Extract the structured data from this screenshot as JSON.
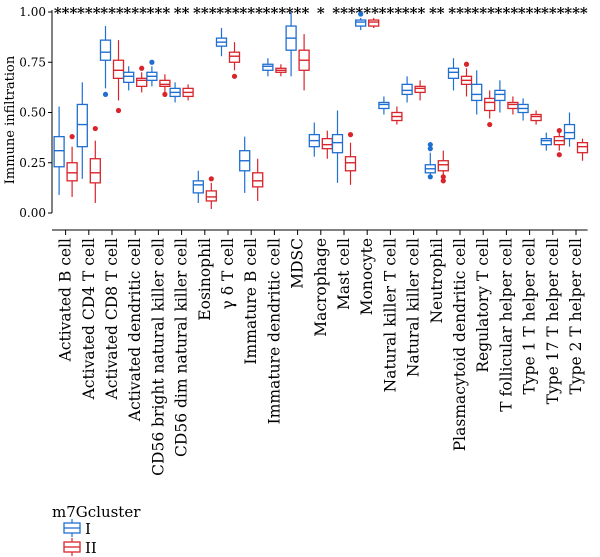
{
  "chart_data": {
    "type": "box",
    "ylabel": "Immune infiltration",
    "ylim": [
      0,
      1
    ],
    "yticks": [
      "0.00",
      "0.25",
      "0.50",
      "0.75",
      "1.00"
    ],
    "legend": {
      "title": "m7Gcluster",
      "placement": "bottom-left"
    },
    "series": [
      {
        "name": "I",
        "color": "#1f6fd1"
      },
      {
        "name": "II",
        "color": "#d9242b"
      }
    ],
    "categories": [
      "Activated B cell",
      "Activated CD4 T cell",
      "Activated CD8 T cell",
      "Activated dendritic cell",
      "CD56 bright natural killer cell",
      "CD56 dim natural killer cell",
      "Eosinophil",
      "γ δ T cell",
      "Immature B cell",
      "Immature dendritic cell",
      "MDSC",
      "Macrophage",
      "Mast cell",
      "Monocyte",
      "Natural killer T cell",
      "Natural killer cell",
      "Neutrophil",
      "Plasmacytoid dendritic cell",
      "Regulatory T cell",
      "T follicular helper cell",
      "Type 1 T helper cell",
      "Type 17 T helper cell",
      "Type 2 T helper cell"
    ],
    "significance": [
      "***",
      "***",
      "***",
      "***",
      "***",
      "**",
      "***",
      "***",
      "***",
      "***",
      "***",
      "*",
      "***",
      "***",
      "***",
      "***",
      "**",
      "***",
      "***",
      "***",
      "***",
      "***",
      "***"
    ],
    "boxes": {
      "I": [
        {
          "min": 0.09,
          "q1": 0.23,
          "median": 0.31,
          "q3": 0.38,
          "max": 0.53,
          "outliers": []
        },
        {
          "min": 0.17,
          "q1": 0.33,
          "median": 0.44,
          "q3": 0.54,
          "max": 0.65,
          "outliers": []
        },
        {
          "min": 0.62,
          "q1": 0.76,
          "median": 0.8,
          "q3": 0.86,
          "max": 0.93,
          "outliers": [
            0.59
          ]
        },
        {
          "min": 0.61,
          "q1": 0.65,
          "median": 0.68,
          "q3": 0.7,
          "max": 0.73,
          "outliers": []
        },
        {
          "min": 0.63,
          "q1": 0.66,
          "median": 0.68,
          "q3": 0.7,
          "max": 0.73,
          "outliers": [
            0.75
          ]
        },
        {
          "min": 0.55,
          "q1": 0.58,
          "median": 0.6,
          "q3": 0.62,
          "max": 0.65,
          "outliers": []
        },
        {
          "min": 0.05,
          "q1": 0.1,
          "median": 0.14,
          "q3": 0.16,
          "max": 0.21,
          "outliers": []
        },
        {
          "min": 0.78,
          "q1": 0.83,
          "median": 0.85,
          "q3": 0.87,
          "max": 0.92,
          "outliers": []
        },
        {
          "min": 0.1,
          "q1": 0.21,
          "median": 0.26,
          "q3": 0.31,
          "max": 0.38,
          "outliers": []
        },
        {
          "min": 0.68,
          "q1": 0.71,
          "median": 0.73,
          "q3": 0.74,
          "max": 0.77,
          "outliers": []
        },
        {
          "min": 0.68,
          "q1": 0.81,
          "median": 0.87,
          "q3": 0.93,
          "max": 1.0,
          "outliers": []
        },
        {
          "min": 0.28,
          "q1": 0.33,
          "median": 0.36,
          "q3": 0.39,
          "max": 0.45,
          "outliers": []
        },
        {
          "min": 0.15,
          "q1": 0.3,
          "median": 0.35,
          "q3": 0.39,
          "max": 0.51,
          "outliers": []
        },
        {
          "min": 0.91,
          "q1": 0.93,
          "median": 0.95,
          "q3": 0.96,
          "max": 0.97,
          "outliers": [
            0.99
          ]
        },
        {
          "min": 0.49,
          "q1": 0.52,
          "median": 0.54,
          "q3": 0.55,
          "max": 0.58,
          "outliers": []
        },
        {
          "min": 0.55,
          "q1": 0.59,
          "median": 0.61,
          "q3": 0.64,
          "max": 0.68,
          "outliers": []
        },
        {
          "min": 0.19,
          "q1": 0.2,
          "median": 0.22,
          "q3": 0.24,
          "max": 0.3,
          "outliers": [
            0.32,
            0.34,
            0.18
          ]
        },
        {
          "min": 0.61,
          "q1": 0.67,
          "median": 0.7,
          "q3": 0.72,
          "max": 0.77,
          "outliers": []
        },
        {
          "min": 0.49,
          "q1": 0.56,
          "median": 0.59,
          "q3": 0.64,
          "max": 0.71,
          "outliers": []
        },
        {
          "min": 0.5,
          "q1": 0.56,
          "median": 0.59,
          "q3": 0.61,
          "max": 0.66,
          "outliers": []
        },
        {
          "min": 0.46,
          "q1": 0.5,
          "median": 0.52,
          "q3": 0.54,
          "max": 0.57,
          "outliers": []
        },
        {
          "min": 0.31,
          "q1": 0.34,
          "median": 0.36,
          "q3": 0.37,
          "max": 0.4,
          "outliers": []
        },
        {
          "min": 0.33,
          "q1": 0.37,
          "median": 0.4,
          "q3": 0.44,
          "max": 0.5,
          "outliers": []
        }
      ],
      "II": [
        {
          "min": 0.08,
          "q1": 0.16,
          "median": 0.2,
          "q3": 0.25,
          "max": 0.33,
          "outliers": [
            0.38
          ]
        },
        {
          "min": 0.05,
          "q1": 0.15,
          "median": 0.2,
          "q3": 0.27,
          "max": 0.36,
          "outliers": [
            0.42
          ]
        },
        {
          "min": 0.56,
          "q1": 0.67,
          "median": 0.71,
          "q3": 0.76,
          "max": 0.86,
          "outliers": [
            0.51
          ]
        },
        {
          "min": 0.6,
          "q1": 0.63,
          "median": 0.66,
          "q3": 0.67,
          "max": 0.7,
          "outliers": [
            0.72
          ]
        },
        {
          "min": 0.6,
          "q1": 0.63,
          "median": 0.64,
          "q3": 0.66,
          "max": 0.69,
          "outliers": [
            0.59
          ]
        },
        {
          "min": 0.56,
          "q1": 0.58,
          "median": 0.6,
          "q3": 0.62,
          "max": 0.64,
          "outliers": []
        },
        {
          "min": 0.02,
          "q1": 0.06,
          "median": 0.08,
          "q3": 0.11,
          "max": 0.15,
          "outliers": [
            0.17
          ]
        },
        {
          "min": 0.71,
          "q1": 0.75,
          "median": 0.78,
          "q3": 0.8,
          "max": 0.85,
          "outliers": [
            0.68
          ]
        },
        {
          "min": 0.06,
          "q1": 0.13,
          "median": 0.16,
          "q3": 0.2,
          "max": 0.27,
          "outliers": []
        },
        {
          "min": 0.68,
          "q1": 0.7,
          "median": 0.71,
          "q3": 0.72,
          "max": 0.74,
          "outliers": []
        },
        {
          "min": 0.61,
          "q1": 0.71,
          "median": 0.76,
          "q3": 0.81,
          "max": 0.89,
          "outliers": []
        },
        {
          "min": 0.27,
          "q1": 0.32,
          "median": 0.34,
          "q3": 0.37,
          "max": 0.41,
          "outliers": []
        },
        {
          "min": 0.14,
          "q1": 0.21,
          "median": 0.25,
          "q3": 0.28,
          "max": 0.35,
          "outliers": [
            0.39
          ]
        },
        {
          "min": 0.92,
          "q1": 0.93,
          "median": 0.95,
          "q3": 0.96,
          "max": 0.97,
          "outliers": []
        },
        {
          "min": 0.44,
          "q1": 0.46,
          "median": 0.48,
          "q3": 0.5,
          "max": 0.53,
          "outliers": []
        },
        {
          "min": 0.56,
          "q1": 0.6,
          "median": 0.62,
          "q3": 0.63,
          "max": 0.66,
          "outliers": []
        },
        {
          "min": 0.17,
          "q1": 0.21,
          "median": 0.24,
          "q3": 0.26,
          "max": 0.31,
          "outliers": [
            0.16,
            0.18
          ]
        },
        {
          "min": 0.58,
          "q1": 0.64,
          "median": 0.66,
          "q3": 0.68,
          "max": 0.72,
          "outliers": [
            0.74
          ]
        },
        {
          "min": 0.47,
          "q1": 0.51,
          "median": 0.55,
          "q3": 0.57,
          "max": 0.61,
          "outliers": [
            0.44
          ]
        },
        {
          "min": 0.49,
          "q1": 0.52,
          "median": 0.54,
          "q3": 0.55,
          "max": 0.58,
          "outliers": []
        },
        {
          "min": 0.44,
          "q1": 0.46,
          "median": 0.48,
          "q3": 0.49,
          "max": 0.51,
          "outliers": []
        },
        {
          "min": 0.31,
          "q1": 0.34,
          "median": 0.36,
          "q3": 0.38,
          "max": 0.4,
          "outliers": [
            0.41,
            0.29
          ]
        },
        {
          "min": 0.26,
          "q1": 0.3,
          "median": 0.33,
          "q3": 0.35,
          "max": 0.37,
          "outliers": []
        }
      ]
    }
  }
}
